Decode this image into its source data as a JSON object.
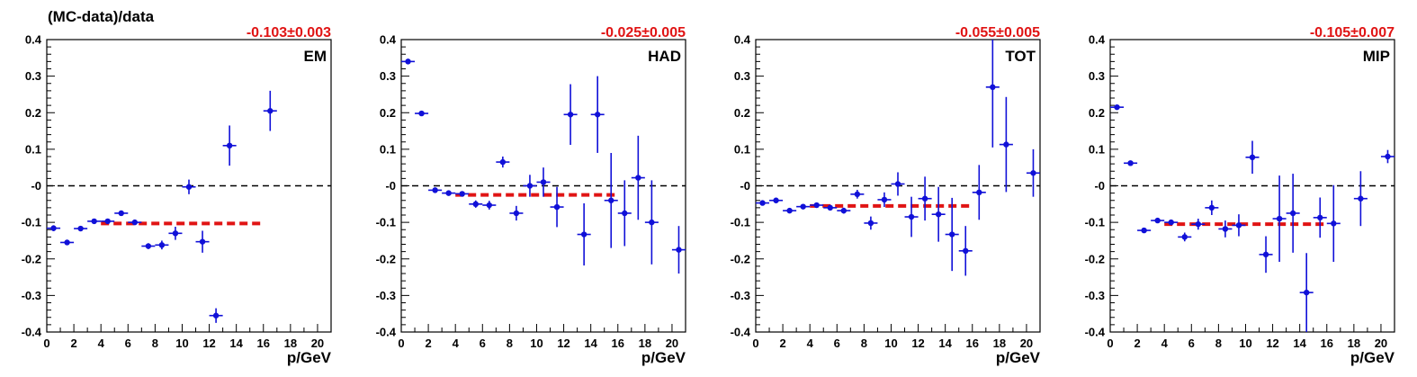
{
  "figure": {
    "ylabel": "(MC-data)/data",
    "xlabel": "p/GeV"
  },
  "colors": {
    "points": "#1010d8",
    "fit": "#e01414",
    "result_text": "#e01414",
    "zero_line": "#000000"
  },
  "chart_data": [
    {
      "type": "scatter",
      "label": "EM",
      "result": "-0.103±0.003",
      "xlim": [
        0,
        21
      ],
      "ylim": [
        -0.4,
        0.4
      ],
      "xticks": [
        "0",
        "2",
        "4",
        "6",
        "8",
        "10",
        "12",
        "14",
        "16",
        "18",
        "20"
      ],
      "yticks": [
        "-0.4",
        "-0.3",
        "-0.2",
        "-0.1",
        "-0",
        "0.1",
        "0.2",
        "0.3",
        "0.4"
      ],
      "x_error": 0.5,
      "fit": {
        "value": -0.103,
        "x_range": [
          4,
          16
        ]
      },
      "points": [
        {
          "x": 0.5,
          "y": -0.116,
          "err": 0.008
        },
        {
          "x": 1.5,
          "y": -0.155,
          "err": 0.006
        },
        {
          "x": 2.5,
          "y": -0.117,
          "err": 0.005
        },
        {
          "x": 3.5,
          "y": -0.097,
          "err": 0.005
        },
        {
          "x": 4.5,
          "y": -0.097,
          "err": 0.006
        },
        {
          "x": 5.5,
          "y": -0.075,
          "err": 0.006
        },
        {
          "x": 6.5,
          "y": -0.1,
          "err": 0.007
        },
        {
          "x": 7.5,
          "y": -0.165,
          "err": 0.008
        },
        {
          "x": 8.5,
          "y": -0.162,
          "err": 0.012
        },
        {
          "x": 9.5,
          "y": -0.13,
          "err": 0.018
        },
        {
          "x": 10.5,
          "y": -0.003,
          "err": 0.02
        },
        {
          "x": 11.5,
          "y": -0.153,
          "err": 0.03
        },
        {
          "x": 12.5,
          "y": -0.355,
          "err": 0.02
        },
        {
          "x": 13.5,
          "y": 0.11,
          "err": 0.055
        },
        {
          "x": 16.5,
          "y": 0.205,
          "err": 0.055
        }
      ]
    },
    {
      "type": "scatter",
      "label": "HAD",
      "result": "-0.025±0.005",
      "xlim": [
        0,
        21
      ],
      "ylim": [
        -0.4,
        0.4
      ],
      "xticks": [
        "0",
        "2",
        "4",
        "6",
        "8",
        "10",
        "12",
        "14",
        "16",
        "18",
        "20"
      ],
      "yticks": [
        "-0.4",
        "-0.3",
        "-0.2",
        "-0.1",
        "-0",
        "0.1",
        "0.2",
        "0.3",
        "0.4"
      ],
      "x_error": 0.5,
      "fit": {
        "value": -0.025,
        "x_range": [
          4,
          16
        ]
      },
      "points": [
        {
          "x": 0.5,
          "y": 0.34,
          "err": 0.005
        },
        {
          "x": 1.5,
          "y": 0.198,
          "err": 0.004
        },
        {
          "x": 2.5,
          "y": -0.012,
          "err": 0.005
        },
        {
          "x": 3.5,
          "y": -0.02,
          "err": 0.006
        },
        {
          "x": 4.5,
          "y": -0.022,
          "err": 0.007
        },
        {
          "x": 5.5,
          "y": -0.05,
          "err": 0.01
        },
        {
          "x": 6.5,
          "y": -0.053,
          "err": 0.012
        },
        {
          "x": 7.5,
          "y": 0.065,
          "err": 0.015
        },
        {
          "x": 8.5,
          "y": -0.075,
          "err": 0.02
        },
        {
          "x": 9.5,
          "y": 0.0,
          "err": 0.03
        },
        {
          "x": 10.5,
          "y": 0.01,
          "err": 0.04
        },
        {
          "x": 11.5,
          "y": -0.058,
          "err": 0.055
        },
        {
          "x": 12.5,
          "y": 0.195,
          "err": 0.083
        },
        {
          "x": 13.5,
          "y": -0.133,
          "err": 0.085
        },
        {
          "x": 14.5,
          "y": 0.195,
          "err": 0.105
        },
        {
          "x": 15.5,
          "y": -0.04,
          "err": 0.13
        },
        {
          "x": 16.5,
          "y": -0.075,
          "err": 0.09
        },
        {
          "x": 17.5,
          "y": 0.022,
          "err": 0.115
        },
        {
          "x": 18.5,
          "y": -0.1,
          "err": 0.115
        },
        {
          "x": 20.5,
          "y": -0.175,
          "err": 0.065
        }
      ]
    },
    {
      "type": "scatter",
      "label": "TOT",
      "result": "-0.055±0.005",
      "xlim": [
        0,
        21
      ],
      "ylim": [
        -0.4,
        0.4
      ],
      "xticks": [
        "0",
        "2",
        "4",
        "6",
        "8",
        "10",
        "12",
        "14",
        "16",
        "18",
        "20"
      ],
      "yticks": [
        "-0.4",
        "-0.3",
        "-0.2",
        "-0.1",
        "-0",
        "0.1",
        "0.2",
        "0.3",
        "0.4"
      ],
      "x_error": 0.5,
      "fit": {
        "value": -0.055,
        "x_range": [
          4,
          16
        ]
      },
      "points": [
        {
          "x": 0.5,
          "y": -0.047,
          "err": 0.006
        },
        {
          "x": 1.5,
          "y": -0.04,
          "err": 0.005
        },
        {
          "x": 2.5,
          "y": -0.068,
          "err": 0.005
        },
        {
          "x": 3.5,
          "y": -0.057,
          "err": 0.005
        },
        {
          "x": 4.5,
          "y": -0.053,
          "err": 0.006
        },
        {
          "x": 5.5,
          "y": -0.06,
          "err": 0.007
        },
        {
          "x": 6.5,
          "y": -0.068,
          "err": 0.008
        },
        {
          "x": 7.5,
          "y": -0.023,
          "err": 0.012
        },
        {
          "x": 8.5,
          "y": -0.102,
          "err": 0.018
        },
        {
          "x": 9.5,
          "y": -0.038,
          "err": 0.02
        },
        {
          "x": 10.5,
          "y": 0.005,
          "err": 0.032
        },
        {
          "x": 11.5,
          "y": -0.085,
          "err": 0.055
        },
        {
          "x": 12.5,
          "y": -0.035,
          "err": 0.06
        },
        {
          "x": 13.5,
          "y": -0.078,
          "err": 0.075
        },
        {
          "x": 14.5,
          "y": -0.133,
          "err": 0.1
        },
        {
          "x": 15.5,
          "y": -0.178,
          "err": 0.068
        },
        {
          "x": 16.5,
          "y": -0.018,
          "err": 0.075
        },
        {
          "x": 17.5,
          "y": 0.27,
          "err": 0.165
        },
        {
          "x": 18.5,
          "y": 0.113,
          "err": 0.13
        },
        {
          "x": 20.5,
          "y": 0.035,
          "err": 0.065
        }
      ]
    },
    {
      "type": "scatter",
      "label": "MIP",
      "result": "-0.105±0.007",
      "xlim": [
        0,
        21
      ],
      "ylim": [
        -0.4,
        0.4
      ],
      "xticks": [
        "0",
        "2",
        "4",
        "6",
        "8",
        "10",
        "12",
        "14",
        "16",
        "18",
        "20"
      ],
      "yticks": [
        "-0.4",
        "-0.3",
        "-0.2",
        "-0.1",
        "-0",
        "0.1",
        "0.2",
        "0.3",
        "0.4"
      ],
      "x_error": 0.5,
      "fit": {
        "value": -0.105,
        "x_range": [
          4,
          16
        ]
      },
      "points": [
        {
          "x": 0.5,
          "y": 0.215,
          "err": 0.006
        },
        {
          "x": 1.5,
          "y": 0.062,
          "err": 0.005
        },
        {
          "x": 2.5,
          "y": -0.122,
          "err": 0.005
        },
        {
          "x": 3.5,
          "y": -0.095,
          "err": 0.006
        },
        {
          "x": 4.5,
          "y": -0.1,
          "err": 0.007
        },
        {
          "x": 5.5,
          "y": -0.14,
          "err": 0.012
        },
        {
          "x": 6.5,
          "y": -0.105,
          "err": 0.015
        },
        {
          "x": 7.5,
          "y": -0.06,
          "err": 0.02
        },
        {
          "x": 8.5,
          "y": -0.118,
          "err": 0.023
        },
        {
          "x": 9.5,
          "y": -0.108,
          "err": 0.03
        },
        {
          "x": 10.5,
          "y": 0.078,
          "err": 0.045
        },
        {
          "x": 11.5,
          "y": -0.188,
          "err": 0.05
        },
        {
          "x": 12.5,
          "y": -0.09,
          "err": 0.118
        },
        {
          "x": 13.5,
          "y": -0.075,
          "err": 0.108
        },
        {
          "x": 14.5,
          "y": -0.292,
          "err": 0.108
        },
        {
          "x": 15.5,
          "y": -0.087,
          "err": 0.055
        },
        {
          "x": 16.5,
          "y": -0.103,
          "err": 0.105
        },
        {
          "x": 18.5,
          "y": -0.035,
          "err": 0.075
        },
        {
          "x": 20.5,
          "y": 0.08,
          "err": 0.018
        }
      ]
    }
  ]
}
